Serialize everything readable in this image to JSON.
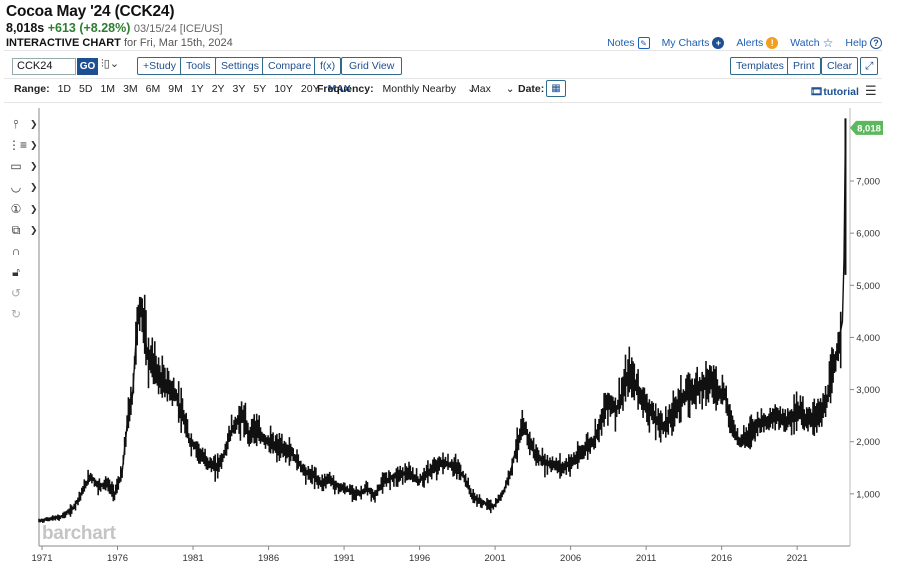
{
  "header": {
    "title": "Cocoa May '24 (CCK24)",
    "last": "8,018s",
    "change": "+613 (+8.28%)",
    "meta": "03/15/24 [ICE/US]",
    "chart_kind": "INTERACTIVE CHART",
    "for_date": "for Fri, Mar 15th, 2024"
  },
  "toplinks": {
    "notes": "Notes",
    "my_charts": "My Charts",
    "alerts": "Alerts",
    "watch": "Watch",
    "help": "Help"
  },
  "toolbar": {
    "symbol": "CCK24",
    "go": "GO",
    "study": "+Study",
    "tools": "Tools",
    "settings": "Settings",
    "compare": "Compare",
    "fx": "f(x)",
    "grid_view": "Grid View",
    "templates": "Templates",
    "print": "Print",
    "clear": "Clear"
  },
  "range": {
    "label": "Range:",
    "options": [
      "1D",
      "5D",
      "1M",
      "3M",
      "6M",
      "9M",
      "1Y",
      "2Y",
      "3Y",
      "5Y",
      "10Y",
      "20Y",
      "MAX"
    ],
    "active": "MAX",
    "frequency_label": "Frequency:",
    "frequency": "Monthly Nearby",
    "max_select": "Max",
    "date_label": "Date:",
    "tutorial": "tutorial"
  },
  "watermark": "barchart",
  "colors": {
    "price_badge": "#5cb85c",
    "bars": "#111111",
    "link": "#1d5fb5",
    "change_up": "#2e7d32"
  },
  "chart_data": {
    "type": "line",
    "title": "",
    "xlabel": "",
    "ylabel": "",
    "last_price_label": "8,018",
    "x_ticks": [
      "1971",
      "1976",
      "1981",
      "1986",
      "1991",
      "1996",
      "2001",
      "2006",
      "2011",
      "2016",
      "2021"
    ],
    "y_ticks": [
      "1,000",
      "2,000",
      "3,000",
      "4,000",
      "5,000",
      "6,000",
      "7,000"
    ],
    "xlim": [
      1970.8,
      2024.5
    ],
    "ylim": [
      0,
      8400
    ],
    "series": [
      {
        "x": [
          1970.8,
          1971.5,
          1972.2,
          1973.0,
          1973.5,
          1974.2,
          1974.7,
          1975.3,
          1975.8,
          1976.3,
          1976.7,
          1977.0,
          1977.3,
          1977.6,
          1978.0,
          1978.4,
          1978.8,
          1979.2,
          1979.6,
          1980.0,
          1980.4,
          1980.8,
          1981.2,
          1981.6,
          1982.0,
          1982.5,
          1983.0,
          1983.5,
          1984.0,
          1984.3,
          1984.7,
          1985.0,
          1985.5,
          1986.0,
          1986.5,
          1987.0,
          1987.5,
          1988.0,
          1988.5,
          1989.0,
          1989.5,
          1990.0,
          1990.5,
          1991.0,
          1991.5,
          1992.0,
          1992.5,
          1993.0,
          1993.5,
          1994.0,
          1994.5,
          1995.0,
          1995.5,
          1996.0,
          1996.5,
          1997.0,
          1997.5,
          1998.0,
          1998.5,
          1999.0,
          1999.5,
          2000.0,
          2000.5,
          2000.9,
          2001.5,
          2002.0,
          2002.5,
          2002.9,
          2003.3,
          2003.8,
          2004.3,
          2005.0,
          2005.5,
          2006.0,
          2006.5,
          2007.0,
          2007.5,
          2008.0,
          2008.5,
          2009.0,
          2009.5,
          2009.9,
          2010.3,
          2010.8,
          2011.2,
          2011.7,
          2012.2,
          2012.7,
          2013.2,
          2013.7,
          2014.2,
          2014.7,
          2015.2,
          2015.7,
          2016.2,
          2016.7,
          2017.2,
          2017.7,
          2018.2,
          2018.7,
          2019.2,
          2019.7,
          2020.2,
          2020.7,
          2021.2,
          2021.7,
          2022.2,
          2022.7,
          2023.0,
          2023.3,
          2023.6,
          2023.8,
          2024.0,
          2024.1,
          2024.2
        ],
        "y": [
          480,
          520,
          550,
          700,
          950,
          1350,
          1150,
          1200,
          1000,
          1400,
          2500,
          2900,
          4300,
          4600,
          3600,
          3500,
          3200,
          3100,
          3000,
          2800,
          2400,
          2000,
          1900,
          1700,
          1600,
          1500,
          1700,
          2200,
          2400,
          2500,
          2100,
          2300,
          2100,
          2000,
          1900,
          1850,
          1800,
          1600,
          1400,
          1350,
          1200,
          1300,
          1150,
          1100,
          1050,
          1000,
          1100,
          950,
          1200,
          1300,
          1350,
          1400,
          1350,
          1250,
          1400,
          1500,
          1600,
          1550,
          1500,
          1300,
          950,
          850,
          800,
          750,
          1000,
          1400,
          2000,
          2300,
          2000,
          1700,
          1600,
          1550,
          1500,
          1600,
          1700,
          1900,
          2000,
          2400,
          2800,
          2600,
          3000,
          3300,
          3100,
          2800,
          2600,
          2400,
          2300,
          2500,
          2800,
          2900,
          3000,
          3100,
          3200,
          3000,
          2900,
          2300,
          2000,
          2100,
          2300,
          2400,
          2400,
          2500,
          2400,
          2500,
          2600,
          2400,
          2500,
          2600,
          2800,
          3300,
          3600,
          4000,
          4300,
          5500,
          8018
        ]
      }
    ]
  }
}
